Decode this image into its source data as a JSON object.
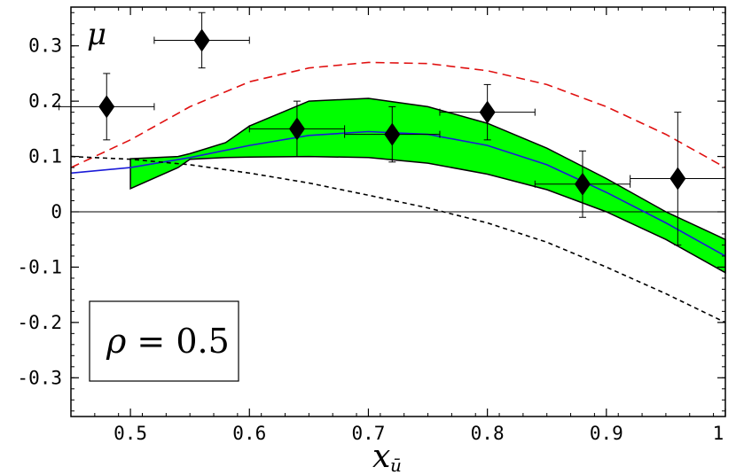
{
  "chart_data": {
    "type": "scatter",
    "title": "",
    "ylabel": "μ",
    "xlabel_main": "x",
    "xlabel_sub": "ū",
    "annotation": {
      "symbol": "ρ",
      "text": " = 0.5"
    },
    "xlim": [
      0.45,
      1.0
    ],
    "ylim": [
      -0.37,
      0.37
    ],
    "xticks": [
      0.5,
      0.6,
      0.7,
      0.8,
      0.9,
      1.0
    ],
    "xtick_labels": [
      "0.5",
      "0.6",
      "0.7",
      "0.8",
      "0.9",
      "1"
    ],
    "yticks": [
      0.3,
      0.2,
      0.1,
      0.0,
      -0.1,
      -0.2,
      -0.3
    ],
    "ytick_labels": [
      "0.3",
      "0.2",
      "0.1",
      "0",
      "-0.1",
      "-0.2",
      "-0.3"
    ],
    "grid": false,
    "zero_line": true,
    "data_points": [
      {
        "x": 0.48,
        "y": 0.19,
        "xerr": 0.04,
        "yerr": 0.06
      },
      {
        "x": 0.56,
        "y": 0.31,
        "xerr": 0.04,
        "yerr": 0.05
      },
      {
        "x": 0.64,
        "y": 0.15,
        "xerr": 0.04,
        "yerr": 0.05
      },
      {
        "x": 0.72,
        "y": 0.14,
        "xerr": 0.04,
        "yerr": 0.05
      },
      {
        "x": 0.8,
        "y": 0.18,
        "xerr": 0.04,
        "yerr": 0.05
      },
      {
        "x": 0.88,
        "y": 0.05,
        "xerr": 0.04,
        "yerr": 0.06
      },
      {
        "x": 0.96,
        "y": 0.06,
        "xerr": 0.04,
        "yerr": 0.12
      }
    ],
    "band": {
      "x": [
        0.5,
        0.54,
        0.55,
        0.58,
        0.6,
        0.65,
        0.7,
        0.75,
        0.8,
        0.85,
        0.9,
        0.95,
        1.0
      ],
      "upper": [
        0.096,
        0.1,
        0.105,
        0.125,
        0.155,
        0.2,
        0.205,
        0.19,
        0.16,
        0.115,
        0.06,
        0.0,
        -0.05
      ],
      "lower": [
        0.042,
        0.08,
        0.095,
        0.098,
        0.099,
        0.1,
        0.098,
        0.088,
        0.068,
        0.04,
        0.0,
        -0.05,
        -0.11
      ],
      "color": "#00ff00"
    },
    "series": [
      {
        "style": "solid",
        "color": "#1a1ad8",
        "x": [
          0.45,
          0.5,
          0.55,
          0.6,
          0.65,
          0.7,
          0.75,
          0.8,
          0.85,
          0.9,
          0.95,
          1.0
        ],
        "y": [
          0.07,
          0.08,
          0.098,
          0.12,
          0.138,
          0.145,
          0.14,
          0.12,
          0.085,
          0.035,
          -0.02,
          -0.08
        ]
      },
      {
        "style": "dashed",
        "color": "#e01010",
        "x": [
          0.45,
          0.5,
          0.55,
          0.6,
          0.65,
          0.7,
          0.75,
          0.8,
          0.85,
          0.9,
          0.95,
          1.0
        ],
        "y": [
          0.08,
          0.13,
          0.19,
          0.235,
          0.26,
          0.27,
          0.268,
          0.255,
          0.23,
          0.19,
          0.14,
          0.08
        ]
      },
      {
        "style": "short-dashed",
        "color": "#000000",
        "x": [
          0.45,
          0.5,
          0.55,
          0.6,
          0.65,
          0.7,
          0.75,
          0.8,
          0.85,
          0.9,
          0.95,
          1.0
        ],
        "y": [
          0.1,
          0.095,
          0.085,
          0.07,
          0.052,
          0.03,
          0.007,
          -0.02,
          -0.055,
          -0.1,
          -0.148,
          -0.2
        ]
      }
    ]
  }
}
